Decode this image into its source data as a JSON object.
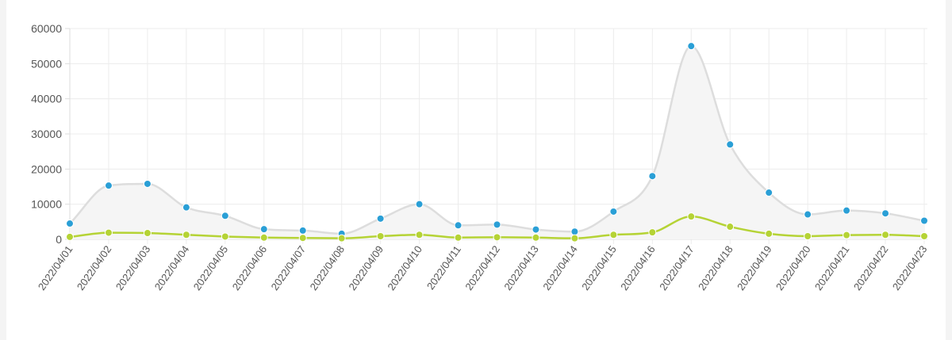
{
  "chart_data": {
    "type": "area",
    "categories": [
      "2022/04/01",
      "2022/04/02",
      "2022/04/03",
      "2022/04/04",
      "2022/04/05",
      "2022/04/06",
      "2022/04/07",
      "2022/04/08",
      "2022/04/09",
      "2022/04/10",
      "2022/04/11",
      "2022/04/12",
      "2022/04/13",
      "2022/04/14",
      "2022/04/15",
      "2022/04/16",
      "2022/04/17",
      "2022/04/18",
      "2022/04/19",
      "2022/04/20",
      "2022/04/21",
      "2022/04/22",
      "2022/04/23"
    ],
    "series": [
      {
        "values": [
          4500,
          15300,
          15800,
          9100,
          6700,
          2900,
          2500,
          1600,
          5900,
          10000,
          4000,
          4200,
          2800,
          2200,
          7900,
          18000,
          55000,
          27000,
          13300,
          7100,
          8200,
          7400,
          5300
        ],
        "line_color": "#dddddd",
        "fill_color": "#f5f5f5",
        "point_color": "#2a9fd6",
        "area": true
      },
      {
        "values": [
          700,
          1900,
          1800,
          1300,
          800,
          500,
          400,
          300,
          900,
          1300,
          500,
          600,
          500,
          300,
          1300,
          2000,
          6500,
          3600,
          1600,
          900,
          1200,
          1300,
          900
        ],
        "line_color": "#b5d335",
        "fill_color": "none",
        "point_color": "#b5d335",
        "area": false
      }
    ],
    "ylim": [
      0,
      60000
    ],
    "yticks": [
      "0",
      "10000",
      "20000",
      "30000",
      "40000",
      "50000",
      "60000"
    ],
    "grid": true,
    "title": "",
    "xlabel": "",
    "ylabel": ""
  }
}
